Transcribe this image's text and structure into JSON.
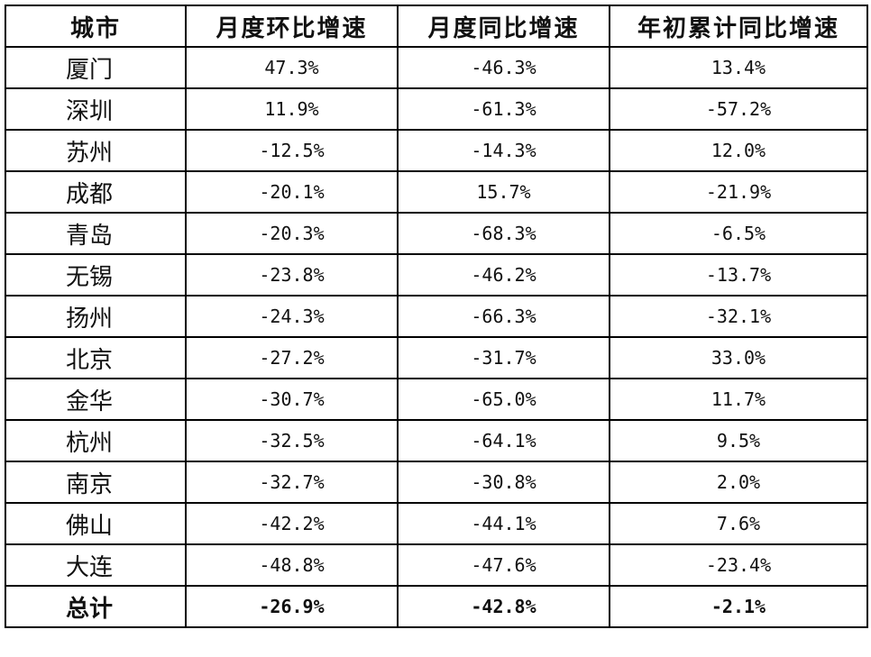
{
  "table": {
    "header": [
      "城市",
      "月度环比增速",
      "月度同比增速",
      "年初累计同比增速"
    ],
    "rows": [
      [
        "厦门",
        "47.3%",
        "-46.3%",
        "13.4%"
      ],
      [
        "深圳",
        "11.9%",
        "-61.3%",
        "-57.2%"
      ],
      [
        "苏州",
        "-12.5%",
        "-14.3%",
        "12.0%"
      ],
      [
        "成都",
        "-20.1%",
        "15.7%",
        "-21.9%"
      ],
      [
        "青岛",
        "-20.3%",
        "-68.3%",
        "-6.5%"
      ],
      [
        "无锡",
        "-23.8%",
        "-46.2%",
        "-13.7%"
      ],
      [
        "扬州",
        "-24.3%",
        "-66.3%",
        "-32.1%"
      ],
      [
        "北京",
        "-27.2%",
        "-31.7%",
        "33.0%"
      ],
      [
        "金华",
        "-30.7%",
        "-65.0%",
        "11.7%"
      ],
      [
        "杭州",
        "-32.5%",
        "-64.1%",
        "9.5%"
      ],
      [
        "南京",
        "-32.7%",
        "-30.8%",
        "2.0%"
      ],
      [
        "佛山",
        "-42.2%",
        "-44.1%",
        "7.6%"
      ],
      [
        "大连",
        "-48.8%",
        "-47.6%",
        "-23.4%"
      ]
    ],
    "total": [
      "总计",
      "-26.9%",
      "-42.8%",
      "-2.1%"
    ]
  }
}
